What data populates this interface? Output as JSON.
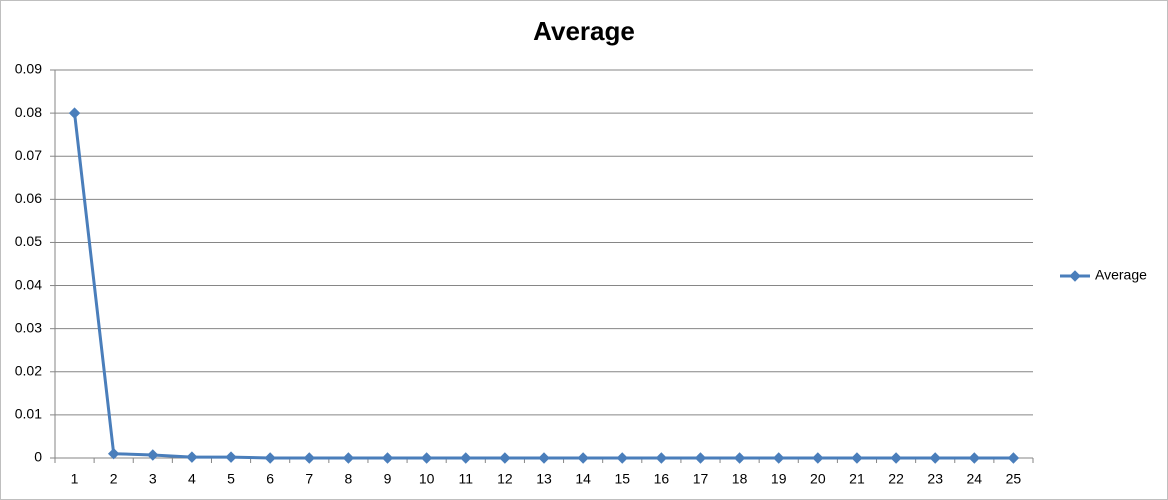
{
  "chart_data": {
    "type": "line",
    "title": "Average",
    "categories": [
      "1",
      "2",
      "3",
      "4",
      "5",
      "6",
      "7",
      "8",
      "9",
      "10",
      "11",
      "12",
      "13",
      "14",
      "15",
      "16",
      "17",
      "18",
      "19",
      "20",
      "21",
      "22",
      "23",
      "24",
      "25"
    ],
    "series": [
      {
        "name": "Average",
        "color": "#4a7ebb",
        "values": [
          0.08,
          0.001,
          0.0007,
          0.0002,
          0.0002,
          0,
          0,
          0,
          0,
          0,
          0,
          0,
          0,
          0,
          0,
          0,
          0,
          0,
          0,
          0,
          0,
          0,
          0,
          0,
          0
        ]
      }
    ],
    "ylim": [
      0,
      0.09
    ],
    "yticks": [
      0,
      0.01,
      0.02,
      0.03,
      0.04,
      0.05,
      0.06,
      0.07,
      0.08,
      0.09
    ],
    "grid": true,
    "legend": "right"
  }
}
